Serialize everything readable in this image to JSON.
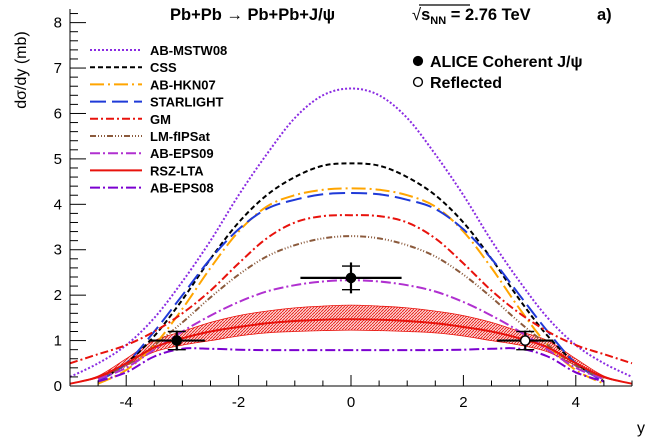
{
  "chart_data": {
    "type": "line",
    "title_parts": {
      "reaction": "Pb+Pb → Pb+Pb+J/ψ",
      "energy_prefix": "√",
      "energy_s": "s",
      "energy_sub": "NN",
      "energy_value": " = 2.76 TeV",
      "panel": "a)"
    },
    "ylabel": "dσ/dy (mb)",
    "xlabel": "y",
    "xlim": [
      -5,
      5
    ],
    "ylim": [
      0,
      8.3
    ],
    "xticks": [
      -4,
      -2,
      0,
      2,
      4
    ],
    "xtick_labels": [
      "-4",
      "-2",
      "0",
      "2",
      "4"
    ],
    "yticks": [
      0,
      1,
      2,
      3,
      4,
      5,
      6,
      7,
      8
    ],
    "ytick_labels": [
      "0",
      "1",
      "2",
      "3",
      "4",
      "5",
      "6",
      "7",
      "8"
    ],
    "grid": false,
    "legend_placement": "top-left",
    "series": [
      {
        "name": "AB-MSTW08",
        "color": "#8a2be2",
        "dash": "2,2",
        "x": [
          -5,
          -4.5,
          -4,
          -3.5,
          -3,
          -2.5,
          -2,
          -1.5,
          -1,
          -0.5,
          0,
          0.5,
          1,
          1.5,
          2,
          2.5,
          3,
          3.5,
          4,
          4.5,
          5
        ],
        "y": [
          0.2,
          0.5,
          0.9,
          1.5,
          2.3,
          3.2,
          4.2,
          5.1,
          5.9,
          6.4,
          6.55,
          6.4,
          5.9,
          5.1,
          4.2,
          3.2,
          2.3,
          1.5,
          0.9,
          0.5,
          0.2
        ]
      },
      {
        "name": "CSS",
        "color": "#000000",
        "dash": "5,3",
        "x": [
          -4.5,
          -4,
          -3.5,
          -3,
          -2.5,
          -2,
          -1.5,
          -1,
          -0.5,
          0,
          0.5,
          1,
          1.5,
          2,
          2.5,
          3,
          3.5,
          4,
          4.5
        ],
        "y": [
          0.1,
          0.5,
          1.1,
          1.9,
          2.8,
          3.6,
          4.2,
          4.6,
          4.85,
          4.9,
          4.85,
          4.6,
          4.2,
          3.6,
          2.8,
          1.9,
          1.1,
          0.5,
          0.1
        ]
      },
      {
        "name": "AB-HKN07",
        "color": "#ffa500",
        "dash": "14,4,2,4",
        "x": [
          -4.5,
          -4,
          -3.5,
          -3,
          -2.5,
          -2,
          -1.5,
          -1,
          -0.5,
          0,
          0.5,
          1,
          1.5,
          2,
          2.5,
          3,
          3.5,
          4,
          4.5
        ],
        "y": [
          0.05,
          0.35,
          0.9,
          1.7,
          2.6,
          3.4,
          3.95,
          4.2,
          4.32,
          4.35,
          4.32,
          4.2,
          3.95,
          3.4,
          2.6,
          1.7,
          0.9,
          0.35,
          0.05
        ]
      },
      {
        "name": "STARLIGHT",
        "color": "#1f3ad8",
        "dash": "16,6",
        "x": [
          -4.5,
          -4,
          -3.5,
          -3,
          -2.5,
          -2,
          -1.5,
          -1,
          -0.5,
          0,
          0.5,
          1,
          1.5,
          2,
          2.5,
          3,
          3.5,
          4,
          4.5
        ],
        "y": [
          0.1,
          0.5,
          1.2,
          2.0,
          2.8,
          3.45,
          3.9,
          4.1,
          4.22,
          4.25,
          4.22,
          4.1,
          3.9,
          3.45,
          2.8,
          2.0,
          1.2,
          0.5,
          0.1
        ]
      },
      {
        "name": "GM",
        "color": "#e8120c",
        "dash": "8,3,2,3",
        "x": [
          -5,
          -4.5,
          -4,
          -3.5,
          -3,
          -2.5,
          -2,
          -1.5,
          -1,
          -0.5,
          0,
          0.5,
          1,
          1.5,
          2,
          2.5,
          3,
          3.5,
          4,
          4.5,
          5
        ],
        "y": [
          0.5,
          0.7,
          0.9,
          1.2,
          1.6,
          2.1,
          2.7,
          3.25,
          3.6,
          3.74,
          3.76,
          3.74,
          3.6,
          3.25,
          2.7,
          2.1,
          1.6,
          1.2,
          0.9,
          0.7,
          0.5
        ]
      },
      {
        "name": "LM-fIPSat",
        "color": "#8b5a3c",
        "dash": "6,2,1,2,1,2,1,2",
        "x": [
          -4.5,
          -4,
          -3.5,
          -3,
          -2.5,
          -2,
          -1.5,
          -1,
          -0.5,
          0,
          0.5,
          1,
          1.5,
          2,
          2.5,
          3,
          3.5,
          4,
          4.5
        ],
        "y": [
          0.15,
          0.45,
          0.9,
          1.4,
          1.95,
          2.45,
          2.85,
          3.1,
          3.25,
          3.3,
          3.25,
          3.1,
          2.85,
          2.45,
          1.95,
          1.4,
          0.9,
          0.45,
          0.15
        ]
      },
      {
        "name": "AB-EPS09",
        "color": "#b030d0",
        "dash": "10,3,2,3",
        "x": [
          -4.5,
          -4,
          -3.5,
          -3,
          -2.5,
          -2,
          -1.5,
          -1,
          -0.5,
          0,
          0.5,
          1,
          1.5,
          2,
          2.5,
          3,
          3.5,
          4,
          4.5
        ],
        "y": [
          0.15,
          0.4,
          0.8,
          1.2,
          1.55,
          1.85,
          2.08,
          2.22,
          2.3,
          2.33,
          2.3,
          2.22,
          2.08,
          1.85,
          1.55,
          1.2,
          0.8,
          0.4,
          0.15
        ]
      },
      {
        "name": "RSZ-LTA",
        "color": "#e8120c",
        "dash": "none",
        "x": [
          -5,
          -4.5,
          -4,
          -3.5,
          -3,
          -2.5,
          -2,
          -1.5,
          -1,
          -0.5,
          0,
          0.5,
          1,
          1.5,
          2,
          2.5,
          3,
          3.5,
          4,
          4.5,
          5
        ],
        "y": [
          0.05,
          0.2,
          0.5,
          0.85,
          1.05,
          1.2,
          1.3,
          1.38,
          1.43,
          1.46,
          1.47,
          1.46,
          1.43,
          1.38,
          1.3,
          1.2,
          1.05,
          0.85,
          0.5,
          0.2,
          0.05
        ],
        "band_low": [
          0.05,
          0.18,
          0.45,
          0.75,
          0.9,
          1.0,
          1.1,
          1.17,
          1.2,
          1.22,
          1.23,
          1.22,
          1.2,
          1.17,
          1.1,
          1.0,
          0.9,
          0.75,
          0.45,
          0.18,
          0.05
        ],
        "band_high": [
          0.05,
          0.22,
          0.6,
          1.0,
          1.2,
          1.4,
          1.55,
          1.65,
          1.72,
          1.76,
          1.78,
          1.76,
          1.72,
          1.65,
          1.55,
          1.4,
          1.2,
          1.0,
          0.6,
          0.22,
          0.05
        ]
      },
      {
        "name": "AB-EPS08",
        "color": "#7b00d0",
        "dash": "10,3,2,3",
        "x": [
          -4.5,
          -4,
          -3.5,
          -3,
          -2.5,
          -2,
          -1.5,
          -1,
          -0.5,
          0,
          0.5,
          1,
          1.5,
          2,
          2.5,
          3,
          3.5,
          4,
          4.5
        ],
        "y": [
          0.1,
          0.3,
          0.65,
          0.82,
          0.82,
          0.8,
          0.79,
          0.79,
          0.79,
          0.79,
          0.79,
          0.79,
          0.79,
          0.8,
          0.82,
          0.82,
          0.65,
          0.3,
          0.1
        ]
      }
    ],
    "points": [
      {
        "name": "ALICE Coherent J/ψ",
        "filled": true,
        "x": [
          -3.1,
          0
        ],
        "y": [
          1.0,
          2.38
        ],
        "xerr": [
          0.5,
          0.9
        ],
        "yerr": [
          0.22,
          0.34
        ],
        "syst": [
          0.2,
          0.26
        ]
      },
      {
        "name": "Reflected",
        "filled": false,
        "x": [
          3.1
        ],
        "y": [
          1.0
        ],
        "xerr": [
          0.5
        ],
        "yerr": [
          0.22
        ],
        "syst": [
          0.2
        ]
      }
    ]
  }
}
